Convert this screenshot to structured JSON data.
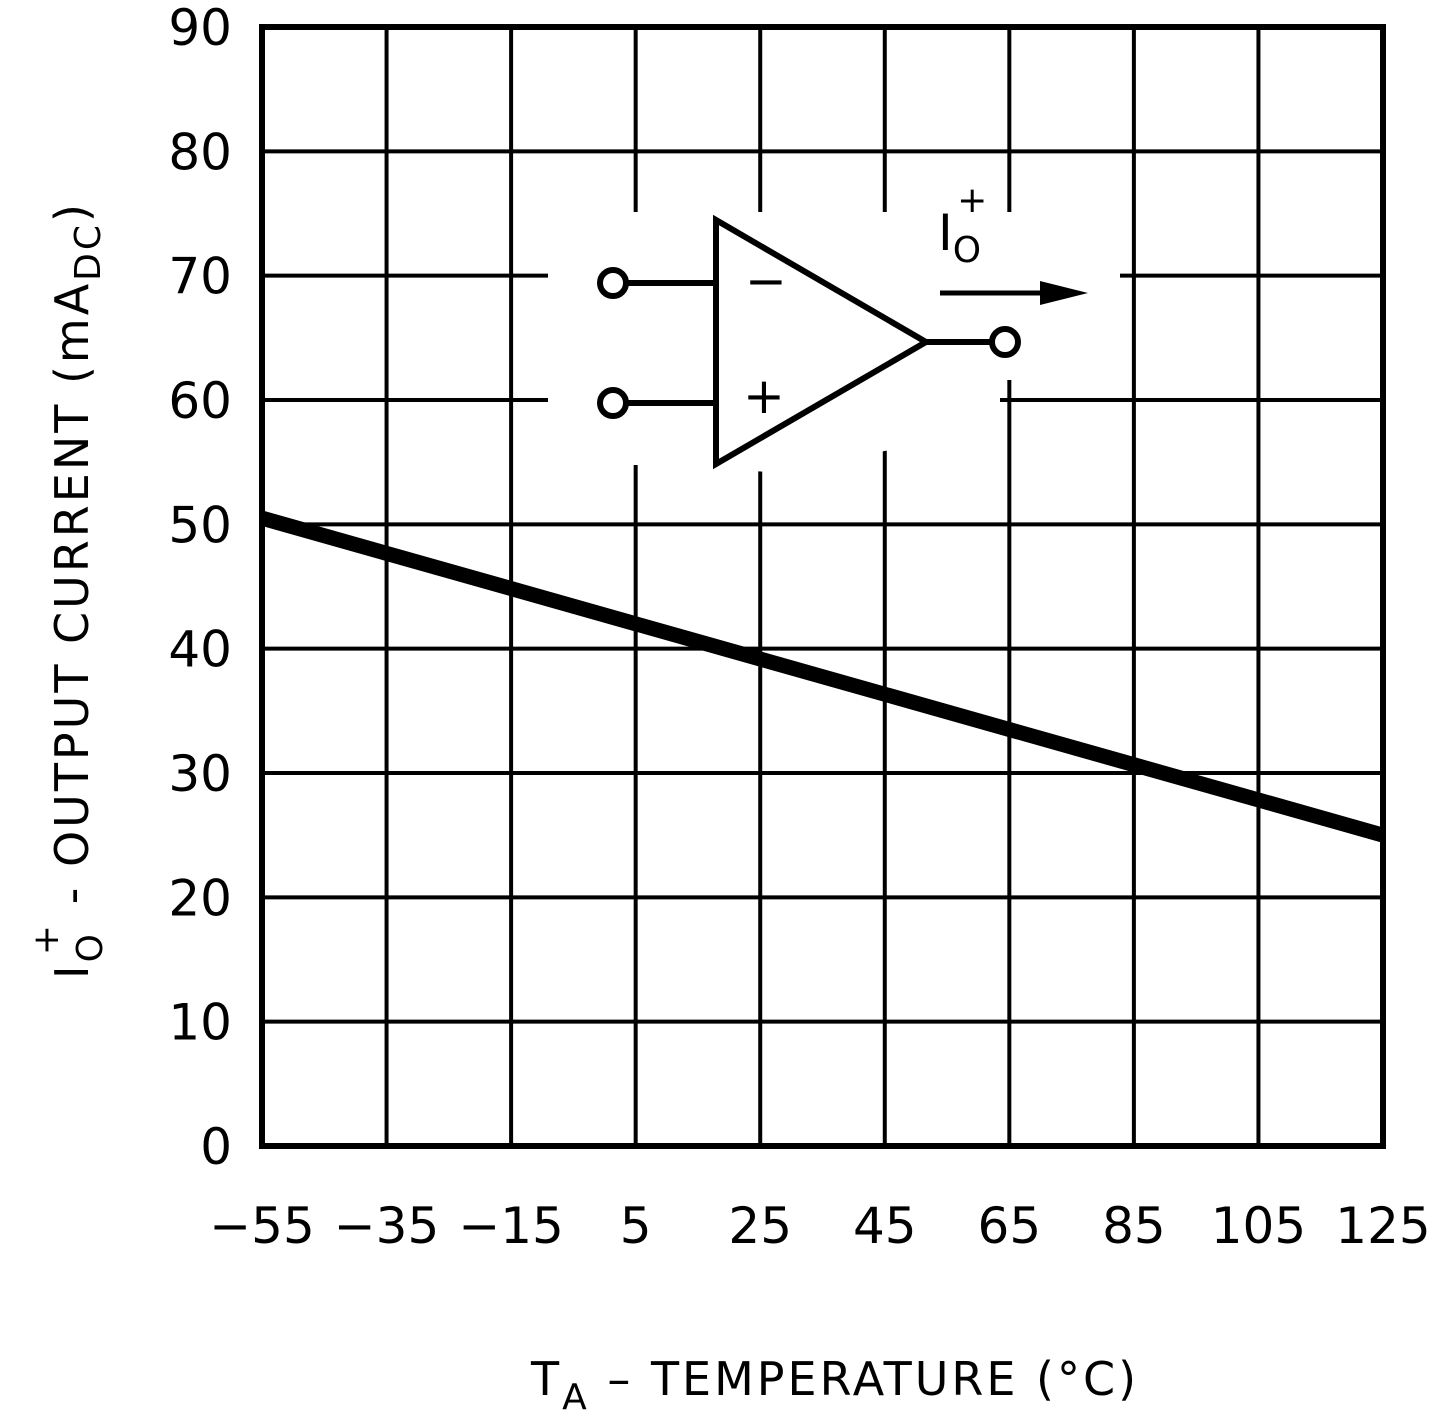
{
  "chart_data": {
    "type": "line",
    "title": "",
    "xlabel": {
      "main": "T",
      "sub": "A",
      "rest": " – TEMPERATURE (°C)"
    },
    "ylabel": {
      "main": "I",
      "sub": "O",
      "sup": "+",
      "rest": " - OUTPUT CURRENT (mA",
      "unit_sub": "DC",
      "close": ")"
    },
    "xlim": [
      -55,
      125
    ],
    "ylim": [
      0,
      90
    ],
    "x_ticks": [
      -55,
      -35,
      -15,
      5,
      25,
      45,
      65,
      85,
      105,
      125
    ],
    "y_ticks": [
      0,
      10,
      20,
      30,
      40,
      50,
      60,
      70,
      80,
      90
    ],
    "grid": true,
    "series": [
      {
        "x": [
          -55,
          125
        ],
        "y": [
          50.5,
          25
        ],
        "color": "#000000"
      }
    ],
    "inset": {
      "type": "op-amp schematic",
      "minus_label": "−",
      "plus_label": "+",
      "current_label": {
        "main": "I",
        "sub": "O",
        "sup": "+"
      }
    }
  }
}
